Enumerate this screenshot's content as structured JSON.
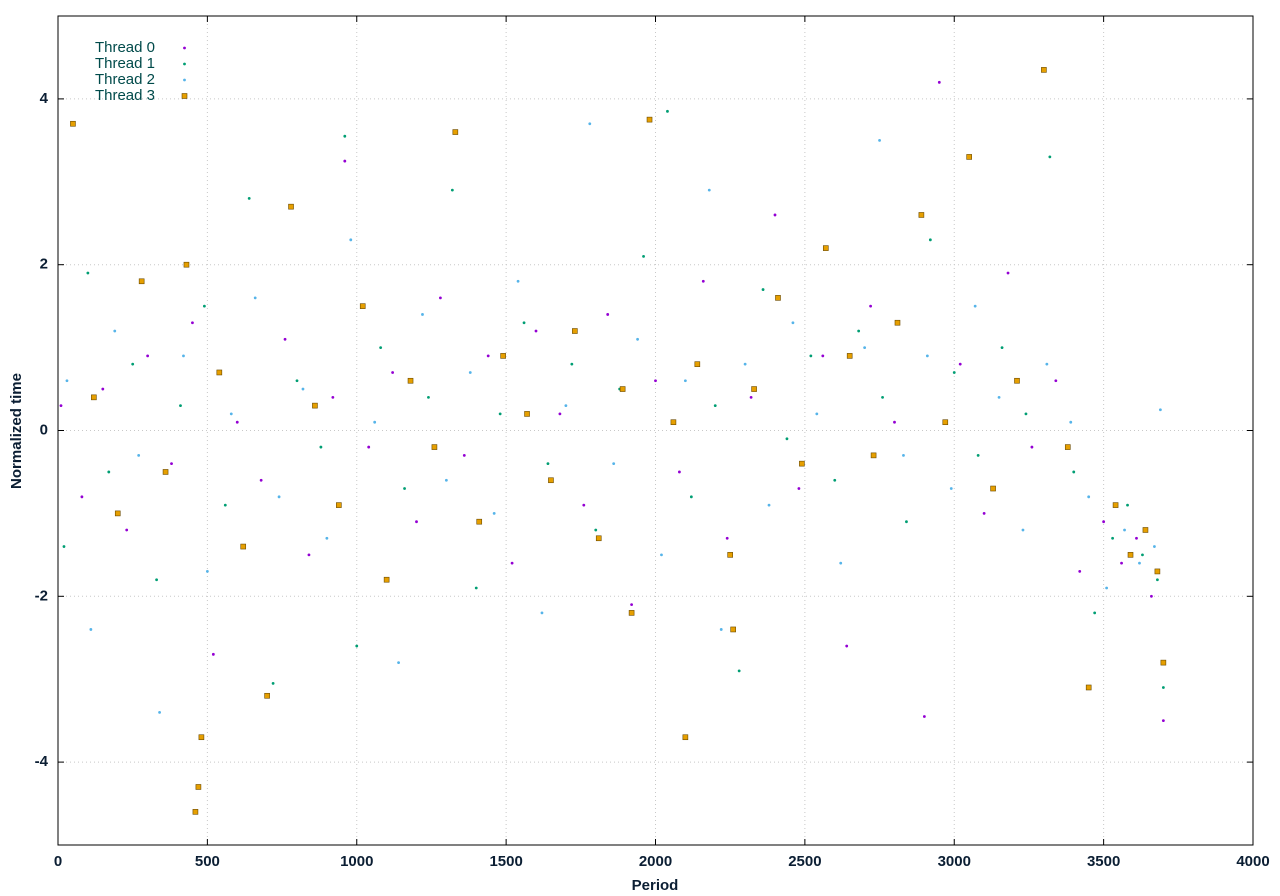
{
  "chart_data": {
    "type": "scatter",
    "x_label": "Period",
    "y_label": "Normalized time",
    "xlim": [
      0,
      4000
    ],
    "xticks": [
      0,
      500,
      1000,
      1500,
      2000,
      2500,
      3000,
      3500,
      4000
    ],
    "ylim": [
      -5,
      5
    ],
    "yticks": [
      -4,
      -2,
      0,
      2,
      4
    ],
    "grid": true,
    "legend": "top-left",
    "series": [
      {
        "name": "Thread 0",
        "color": "#9400d3",
        "marker": "dot",
        "x": [
          10,
          80,
          150,
          230,
          300,
          380,
          450,
          520,
          600,
          680,
          760,
          840,
          920,
          960,
          1040,
          1120,
          1200,
          1280,
          1360,
          1440,
          1520,
          1600,
          1680,
          1760,
          1840,
          1920,
          2000,
          2080,
          2160,
          2240,
          2320,
          2400,
          2480,
          2560,
          2640,
          2720,
          2800,
          2900,
          2950,
          3020,
          3100,
          3180,
          3260,
          3340,
          3420,
          3500,
          3560,
          3610,
          3660,
          3700
        ],
        "values": [
          0.3,
          -0.8,
          0.5,
          -1.2,
          0.9,
          -0.4,
          1.3,
          -2.7,
          0.1,
          -0.6,
          1.1,
          -1.5,
          0.4,
          3.25,
          -0.2,
          0.7,
          -1.1,
          1.6,
          -0.3,
          0.9,
          -1.6,
          1.2,
          0.2,
          -0.9,
          1.4,
          -2.1,
          0.6,
          -0.5,
          1.8,
          -1.3,
          0.4,
          2.6,
          -0.7,
          0.9,
          -2.6,
          1.5,
          0.1,
          -3.45,
          4.2,
          0.8,
          -1.0,
          1.9,
          -0.2,
          0.6,
          -1.7,
          -1.1,
          -1.6,
          -1.3,
          -2.0,
          -3.5
        ]
      },
      {
        "name": "Thread 1",
        "color": "#009e73",
        "marker": "dot",
        "x": [
          20,
          100,
          170,
          250,
          330,
          410,
          490,
          560,
          640,
          720,
          800,
          880,
          960,
          1000,
          1080,
          1160,
          1240,
          1320,
          1400,
          1480,
          1560,
          1640,
          1720,
          1800,
          1880,
          1960,
          2040,
          2120,
          2200,
          2280,
          2360,
          2440,
          2520,
          2600,
          2680,
          2760,
          2840,
          2920,
          3000,
          3080,
          3160,
          3240,
          3320,
          3400,
          3470,
          3530,
          3580,
          3630,
          3680,
          3700
        ],
        "values": [
          -1.4,
          1.9,
          -0.5,
          0.8,
          -1.8,
          0.3,
          1.5,
          -0.9,
          2.8,
          -3.05,
          0.6,
          -0.2,
          3.55,
          -2.6,
          1.0,
          -0.7,
          0.4,
          2.9,
          -1.9,
          0.2,
          1.3,
          -0.4,
          0.8,
          -1.2,
          0.5,
          2.1,
          3.85,
          -0.8,
          0.3,
          -2.9,
          1.7,
          -0.1,
          0.9,
          -0.6,
          1.2,
          0.4,
          -1.1,
          2.3,
          0.7,
          -0.3,
          1.0,
          0.2,
          3.3,
          -0.5,
          -2.2,
          -1.3,
          -0.9,
          -1.5,
          -1.8,
          -3.1
        ]
      },
      {
        "name": "Thread 2",
        "color": "#56b4e9",
        "marker": "dot",
        "x": [
          30,
          110,
          190,
          270,
          340,
          420,
          500,
          580,
          660,
          740,
          820,
          900,
          980,
          1060,
          1140,
          1220,
          1300,
          1380,
          1460,
          1540,
          1620,
          1700,
          1780,
          1860,
          1940,
          2020,
          2100,
          2180,
          2220,
          2300,
          2380,
          2460,
          2540,
          2620,
          2700,
          2750,
          2830,
          2910,
          2990,
          3070,
          3150,
          3230,
          3310,
          3390,
          3450,
          3510,
          3570,
          3620,
          3670,
          3690
        ],
        "values": [
          0.6,
          -2.4,
          1.2,
          -0.3,
          -3.4,
          0.9,
          -1.7,
          0.2,
          1.6,
          -0.8,
          0.5,
          -1.3,
          2.3,
          0.1,
          -2.8,
          1.4,
          -0.6,
          0.7,
          -1.0,
          1.8,
          -2.2,
          0.3,
          3.7,
          -0.4,
          1.1,
          -1.5,
          0.6,
          2.9,
          -2.4,
          0.8,
          -0.9,
          1.3,
          0.2,
          -1.6,
          1.0,
          3.5,
          -0.3,
          0.9,
          -0.7,
          1.5,
          0.4,
          -1.2,
          0.8,
          0.1,
          -0.8,
          -1.9,
          -1.2,
          -1.6,
          -1.4,
          0.25
        ]
      },
      {
        "name": "Thread 3",
        "color": "#e69f00",
        "marker": "square",
        "x": [
          50,
          120,
          200,
          280,
          360,
          430,
          460,
          470,
          480,
          540,
          620,
          700,
          780,
          860,
          940,
          1020,
          1100,
          1180,
          1260,
          1330,
          1410,
          1490,
          1570,
          1650,
          1730,
          1810,
          1890,
          1920,
          1980,
          2060,
          2100,
          2140,
          2250,
          2260,
          2330,
          2410,
          2490,
          2570,
          2650,
          2730,
          2810,
          2890,
          2970,
          3050,
          3130,
          3210,
          3300,
          3380,
          3450,
          3540,
          3590,
          3640,
          3680,
          3700
        ],
        "values": [
          3.7,
          0.4,
          -1.0,
          1.8,
          -0.5,
          2.0,
          -4.6,
          -4.3,
          -3.7,
          0.7,
          -1.4,
          -3.2,
          2.7,
          0.3,
          -0.9,
          1.5,
          -1.8,
          0.6,
          -0.2,
          3.6,
          -1.1,
          0.9,
          0.2,
          -0.6,
          1.2,
          -1.3,
          0.5,
          -2.2,
          3.75,
          0.1,
          -3.7,
          0.8,
          -1.5,
          -2.4,
          0.5,
          1.6,
          -0.4,
          2.2,
          0.9,
          -0.3,
          1.3,
          2.6,
          0.1,
          3.3,
          -0.7,
          0.6,
          4.35,
          -0.2,
          -3.1,
          -0.9,
          -1.5,
          -1.2,
          -1.7,
          -2.8
        ]
      }
    ]
  }
}
